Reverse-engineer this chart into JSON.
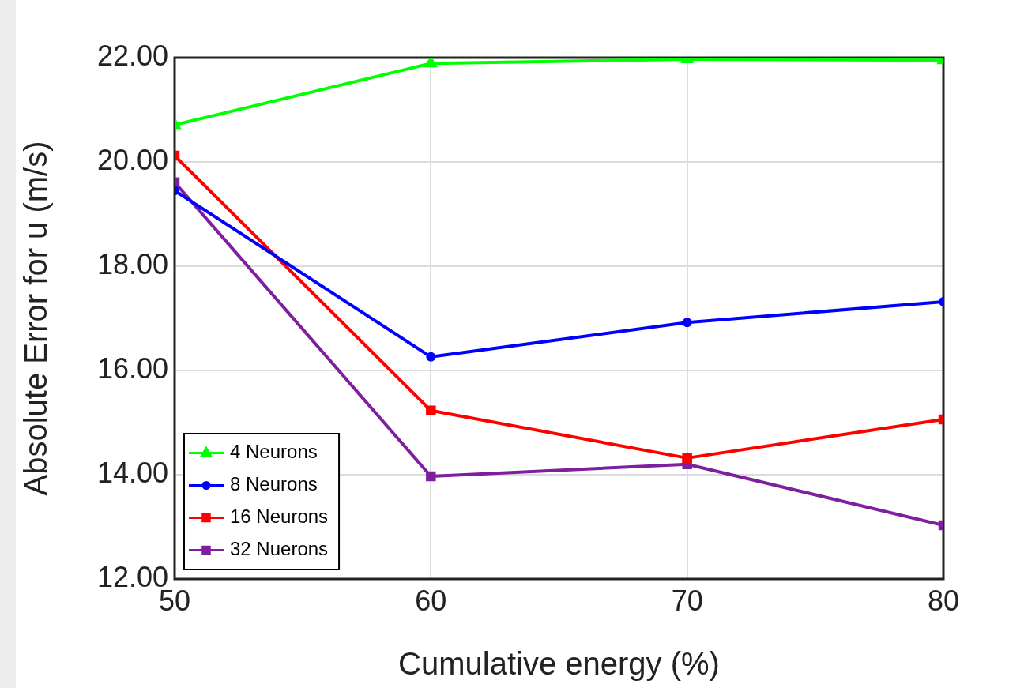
{
  "chart_data": {
    "type": "line",
    "xlabel": "Cumulative energy (%)",
    "ylabel": "Absolute Error for u (m/s)",
    "x": [
      50,
      60,
      70,
      80
    ],
    "xlim": [
      50,
      80
    ],
    "xticks": [
      50,
      60,
      70,
      80
    ],
    "ylim": [
      12,
      22
    ],
    "yticks": [
      {
        "value": 12,
        "label": "12.00"
      },
      {
        "value": 14,
        "label": "14.00"
      },
      {
        "value": 16,
        "label": "16.00"
      },
      {
        "value": 18,
        "label": "18.00"
      },
      {
        "value": 20,
        "label": "20.00"
      },
      {
        "value": 22,
        "label": "22.00"
      }
    ],
    "grid": true,
    "legend": "bottom left",
    "line_style": "solid",
    "series": [
      {
        "name": "4 Neurons",
        "color": "#00ff00",
        "marker": "triangle",
        "values": [
          20.71,
          21.89,
          21.97,
          21.95
        ]
      },
      {
        "name": "8 Neurons",
        "color": "#0000ff",
        "marker": "circle",
        "values": [
          19.45,
          16.26,
          16.92,
          17.32
        ]
      },
      {
        "name": "16 Neurons",
        "color": "#ff0000",
        "marker": "square",
        "values": [
          20.12,
          15.23,
          14.32,
          15.06
        ]
      },
      {
        "name": "32 Nuerons",
        "color": "#7f1f9f",
        "marker": "square",
        "values": [
          19.61,
          13.97,
          14.2,
          13.03
        ]
      }
    ]
  }
}
